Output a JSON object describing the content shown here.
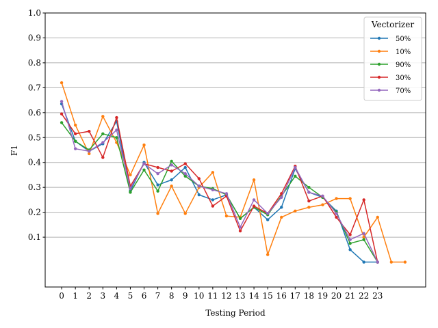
{
  "chart_data": {
    "type": "line",
    "xlabel": "Testing Period",
    "ylabel": "F1",
    "xlim": [
      -1.2,
      26.5
    ],
    "ylim": [
      -0.1,
      1.0
    ],
    "x_ticks": [
      0,
      1,
      2,
      3,
      4,
      5,
      6,
      7,
      8,
      9,
      10,
      11,
      12,
      13,
      14,
      15,
      16,
      17,
      18,
      19,
      20,
      21,
      22,
      23
    ],
    "y_ticks": [
      0.1,
      0.2,
      0.3,
      0.4,
      0.5,
      0.6,
      0.7,
      0.8,
      0.9,
      1.0
    ],
    "y_tick_labels": [
      "0.1",
      "0.2",
      "0.3",
      "0.4",
      "0.5",
      "0.6",
      "0.7",
      "0.8",
      "0.9",
      "1.0"
    ],
    "grid": "horizontal",
    "legend": {
      "title": "Vectorizer",
      "position": "top-right"
    },
    "series": [
      {
        "name": "50%",
        "color": "#1f77b4",
        "x": [
          0,
          1,
          2,
          3,
          4,
          5,
          6,
          7,
          8,
          9,
          10,
          11,
          12,
          13,
          14,
          15,
          16,
          17,
          18,
          19,
          20,
          21,
          22,
          23
        ],
        "values": [
          0.635,
          0.485,
          0.445,
          0.475,
          0.565,
          0.285,
          0.4,
          0.31,
          0.33,
          0.38,
          0.27,
          0.25,
          0.27,
          0.175,
          0.22,
          0.17,
          0.22,
          0.375,
          0.28,
          0.26,
          0.205,
          0.05,
          0.0,
          0.0
        ]
      },
      {
        "name": "10%",
        "color": "#ff7f0e",
        "x": [
          0,
          1,
          2,
          3,
          4,
          5,
          6,
          7,
          8,
          9,
          10,
          11,
          12,
          13,
          14,
          15,
          16,
          17,
          18,
          19,
          20,
          21,
          22,
          23,
          24,
          25
        ],
        "values": [
          0.72,
          0.55,
          0.435,
          0.585,
          0.48,
          0.35,
          0.47,
          0.195,
          0.305,
          0.195,
          0.3,
          0.36,
          0.185,
          0.18,
          0.33,
          0.03,
          0.18,
          0.205,
          0.22,
          0.23,
          0.255,
          0.255,
          0.1,
          0.18,
          0.0,
          0.0
        ]
      },
      {
        "name": "90%",
        "color": "#2ca02c",
        "x": [
          0,
          1,
          2,
          3,
          4,
          5,
          6,
          7,
          8,
          9,
          10,
          11,
          12,
          13,
          14,
          15,
          16,
          17,
          18,
          19,
          20,
          21,
          22,
          23
        ],
        "values": [
          0.56,
          0.485,
          0.45,
          0.515,
          0.5,
          0.28,
          0.37,
          0.285,
          0.405,
          0.345,
          0.305,
          0.295,
          0.27,
          0.175,
          0.22,
          0.19,
          0.265,
          0.345,
          0.3,
          0.26,
          0.2,
          0.075,
          0.09,
          0.0
        ]
      },
      {
        "name": "30%",
        "color": "#d62728",
        "x": [
          0,
          1,
          2,
          3,
          4,
          5,
          6,
          7,
          8,
          9,
          10,
          11,
          12,
          13,
          14,
          15,
          16,
          17,
          18,
          19,
          20,
          21,
          22,
          23
        ],
        "values": [
          0.595,
          0.515,
          0.525,
          0.42,
          0.58,
          0.305,
          0.395,
          0.38,
          0.365,
          0.395,
          0.335,
          0.225,
          0.265,
          0.125,
          0.225,
          0.195,
          0.275,
          0.385,
          0.245,
          0.265,
          0.18,
          0.11,
          0.25,
          0.0
        ]
      },
      {
        "name": "70%",
        "color": "#9467bd",
        "x": [
          0,
          1,
          2,
          3,
          4,
          5,
          6,
          7,
          8,
          9,
          10,
          11,
          12,
          13,
          14,
          15,
          16,
          17,
          18,
          19,
          20,
          21,
          22,
          23
        ],
        "values": [
          0.645,
          0.455,
          0.445,
          0.48,
          0.53,
          0.295,
          0.395,
          0.355,
          0.39,
          0.355,
          0.305,
          0.29,
          0.275,
          0.14,
          0.25,
          0.195,
          0.26,
          0.38,
          0.28,
          0.265,
          0.195,
          0.09,
          0.115,
          0.0
        ]
      }
    ]
  }
}
